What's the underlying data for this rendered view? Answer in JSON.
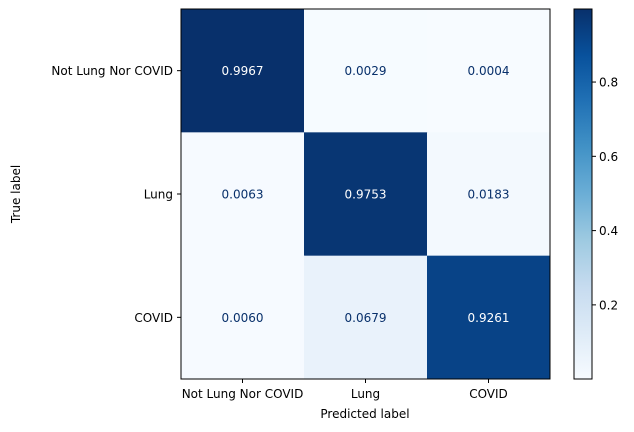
{
  "chart_data": {
    "type": "heatmap",
    "xlabel": "Predicted label",
    "ylabel": "True label",
    "x_categories": [
      "Not Lung Nor COVID",
      "Lung",
      "COVID"
    ],
    "y_categories": [
      "Not Lung Nor COVID",
      "Lung",
      "COVID"
    ],
    "values": [
      [
        0.9967,
        0.0029,
        0.0004
      ],
      [
        0.0063,
        0.9753,
        0.0183
      ],
      [
        0.006,
        0.0679,
        0.9261
      ]
    ],
    "value_labels": [
      [
        "0.9967",
        "0.0029",
        "0.0004"
      ],
      [
        "0.0063",
        "0.9753",
        "0.0183"
      ],
      [
        "0.0060",
        "0.0679",
        "0.9261"
      ]
    ],
    "colormap": "Blues",
    "colorbar": {
      "min": 0.0004,
      "max": 0.9967,
      "ticks": [
        0.2,
        0.4,
        0.6,
        0.8
      ],
      "tick_labels": [
        "0.2",
        "0.4",
        "0.6",
        "0.8"
      ]
    }
  }
}
